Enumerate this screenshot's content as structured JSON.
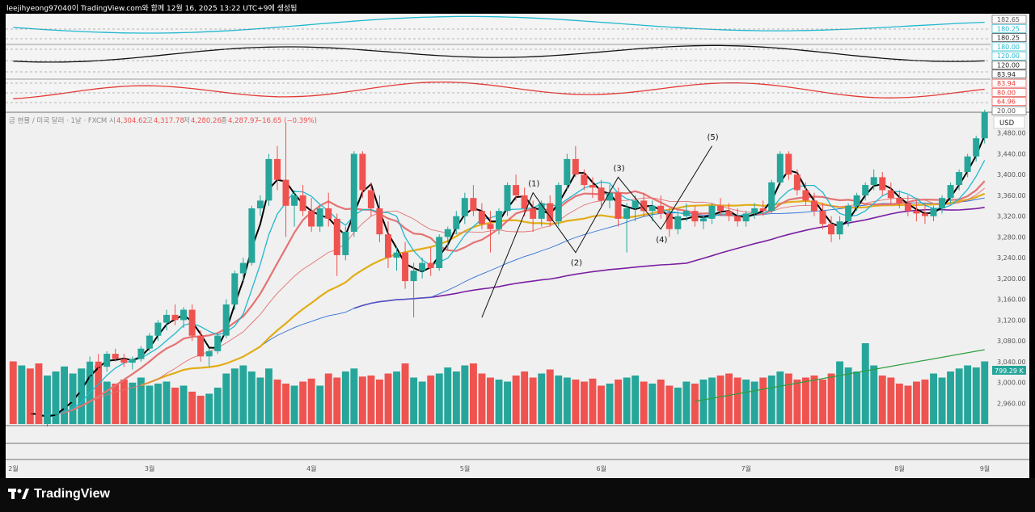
{
  "credit": "leejihyeong97040이 TradingView.com와 함께 12월 16, 2025 13:22 UTC+9에 생성됨",
  "brand": "TradingView",
  "legend": {
    "symbol": "금 현물 / 미국 달러 · 1날 · FXCM",
    "o_label": "시",
    "o": "4,304.62",
    "h_label": "고",
    "h": "4,317.78",
    "l_label": "저",
    "l": "4,280.26",
    "c_label": "종",
    "c": "4,287.97",
    "change": "−16.65 (−0.39%)"
  },
  "currency": "USD",
  "colors": {
    "up": "#26a69a",
    "down": "#ef5350",
    "ma_black": "#000000",
    "ma_cyan": "#1fb8cf",
    "ma_pink": "#e57373",
    "ma_gold": "#e2ad17",
    "ma_blue": "#2f6fd6",
    "ma_purple": "#7b1fa2",
    "vol_ma": "#2e9e3e",
    "wave": "#666666",
    "wave_line": "#111111"
  },
  "indicator_labels": [
    "182.65",
    "180.25",
    "180.25",
    "180.00",
    "120.00",
    "120.00",
    "83.94",
    "83.94",
    "80.00",
    "64.96",
    "20.00"
  ],
  "chart_data": {
    "type": "candlestick",
    "title": "금 현물 / 미국 달러 · 1날 · FXCM",
    "ylabel": "USD",
    "ylim": [
      2920,
      3520
    ],
    "y_ticks": [
      "2,960.00",
      "3,000.00",
      "3,040.00",
      "3,080.00",
      "3,120.00",
      "3,160.00",
      "3,200.00",
      "3,240.00",
      "3,280.00",
      "3,320.00",
      "3,360.00",
      "3,400.00",
      "3,440.00",
      "3,480.00"
    ],
    "x_labels": [
      "2월",
      "3월",
      "4월",
      "5월",
      "6월",
      "7월",
      "8월",
      "9월"
    ],
    "last_volume_label": "799.29 K",
    "wave_labels": [
      "(1)",
      "(2)",
      "(3)",
      "(4)",
      "(5)"
    ],
    "wave_points": [
      [
        55,
        3125
      ],
      [
        61,
        3365
      ],
      [
        66,
        3250
      ],
      [
        71,
        3395
      ],
      [
        76,
        3295
      ],
      [
        82,
        3455
      ]
    ],
    "ohlc": [
      [
        2945,
        2955,
        2930,
        2935
      ],
      [
        2935,
        2950,
        2925,
        2948
      ],
      [
        2948,
        2960,
        2935,
        2940
      ],
      [
        2940,
        2945,
        2920,
        2925
      ],
      [
        2925,
        2940,
        2915,
        2938
      ],
      [
        2938,
        2952,
        2930,
        2950
      ],
      [
        2950,
        2968,
        2945,
        2962
      ],
      [
        2962,
        2985,
        2958,
        2980
      ],
      [
        2980,
        3020,
        2975,
        3015
      ],
      [
        3015,
        3050,
        3005,
        3040
      ],
      [
        3040,
        3055,
        3025,
        3030
      ],
      [
        3030,
        3060,
        3020,
        3055
      ],
      [
        3055,
        3065,
        3040,
        3045
      ],
      [
        3045,
        3055,
        3030,
        3038
      ],
      [
        3038,
        3050,
        3025,
        3045
      ],
      [
        3045,
        3070,
        3040,
        3065
      ],
      [
        3065,
        3095,
        3060,
        3090
      ],
      [
        3090,
        3120,
        3080,
        3115
      ],
      [
        3115,
        3140,
        3100,
        3130
      ],
      [
        3130,
        3150,
        3110,
        3120
      ],
      [
        3120,
        3145,
        3105,
        3140
      ],
      [
        3140,
        3150,
        3080,
        3090
      ],
      [
        3090,
        3100,
        3040,
        3050
      ],
      [
        3050,
        3065,
        3030,
        3060
      ],
      [
        3060,
        3095,
        3055,
        3090
      ],
      [
        3090,
        3160,
        3085,
        3150
      ],
      [
        3150,
        3215,
        3140,
        3210
      ],
      [
        3210,
        3240,
        3195,
        3230
      ],
      [
        3230,
        3340,
        3225,
        3335
      ],
      [
        3335,
        3360,
        3320,
        3350
      ],
      [
        3350,
        3440,
        3340,
        3430
      ],
      [
        3430,
        3455,
        3370,
        3390
      ],
      [
        3390,
        3500,
        3280,
        3340
      ],
      [
        3340,
        3370,
        3300,
        3360
      ],
      [
        3360,
        3380,
        3320,
        3330
      ],
      [
        3330,
        3355,
        3290,
        3300
      ],
      [
        3300,
        3340,
        3290,
        3335
      ],
      [
        3335,
        3365,
        3300,
        3315
      ],
      [
        3315,
        3325,
        3205,
        3245
      ],
      [
        3245,
        3300,
        3235,
        3290
      ],
      [
        3290,
        3445,
        3280,
        3440
      ],
      [
        3440,
        3445,
        3355,
        3370
      ],
      [
        3370,
        3385,
        3320,
        3335
      ],
      [
        3335,
        3360,
        3270,
        3285
      ],
      [
        3285,
        3310,
        3220,
        3240
      ],
      [
        3240,
        3260,
        3215,
        3250
      ],
      [
        3250,
        3270,
        3180,
        3195
      ],
      [
        3195,
        3230,
        3125,
        3215
      ],
      [
        3215,
        3240,
        3200,
        3230
      ],
      [
        3230,
        3260,
        3205,
        3220
      ],
      [
        3220,
        3285,
        3215,
        3280
      ],
      [
        3280,
        3300,
        3255,
        3295
      ],
      [
        3295,
        3330,
        3285,
        3320
      ],
      [
        3320,
        3365,
        3305,
        3355
      ],
      [
        3355,
        3380,
        3320,
        3330
      ],
      [
        3330,
        3345,
        3295,
        3305
      ],
      [
        3305,
        3330,
        3250,
        3295
      ],
      [
        3295,
        3335,
        3285,
        3330
      ],
      [
        3330,
        3385,
        3320,
        3380
      ],
      [
        3380,
        3400,
        3350,
        3360
      ],
      [
        3360,
        3375,
        3320,
        3335
      ],
      [
        3335,
        3350,
        3290,
        3315
      ],
      [
        3315,
        3350,
        3300,
        3345
      ],
      [
        3345,
        3360,
        3300,
        3310
      ],
      [
        3310,
        3385,
        3300,
        3380
      ],
      [
        3380,
        3440,
        3370,
        3430
      ],
      [
        3430,
        3455,
        3395,
        3400
      ],
      [
        3400,
        3410,
        3370,
        3380
      ],
      [
        3380,
        3395,
        3355,
        3375
      ],
      [
        3375,
        3390,
        3340,
        3350
      ],
      [
        3350,
        3380,
        3335,
        3365
      ],
      [
        3365,
        3375,
        3300,
        3315
      ],
      [
        3315,
        3345,
        3250,
        3335
      ],
      [
        3335,
        3360,
        3310,
        3350
      ],
      [
        3350,
        3365,
        3320,
        3330
      ],
      [
        3330,
        3350,
        3310,
        3340
      ],
      [
        3340,
        3360,
        3315,
        3325
      ],
      [
        3325,
        3335,
        3280,
        3295
      ],
      [
        3295,
        3330,
        3285,
        3320
      ],
      [
        3320,
        3345,
        3310,
        3330
      ],
      [
        3330,
        3340,
        3300,
        3310
      ],
      [
        3310,
        3320,
        3295,
        3315
      ],
      [
        3315,
        3345,
        3305,
        3340
      ],
      [
        3340,
        3355,
        3320,
        3330
      ],
      [
        3330,
        3345,
        3310,
        3320
      ],
      [
        3320,
        3335,
        3300,
        3310
      ],
      [
        3310,
        3330,
        3300,
        3325
      ],
      [
        3325,
        3345,
        3315,
        3335
      ],
      [
        3335,
        3350,
        3320,
        3330
      ],
      [
        3330,
        3390,
        3325,
        3385
      ],
      [
        3385,
        3445,
        3380,
        3440
      ],
      [
        3440,
        3445,
        3390,
        3400
      ],
      [
        3400,
        3410,
        3360,
        3370
      ],
      [
        3370,
        3385,
        3340,
        3350
      ],
      [
        3350,
        3365,
        3320,
        3330
      ],
      [
        3330,
        3345,
        3295,
        3305
      ],
      [
        3305,
        3320,
        3270,
        3285
      ],
      [
        3285,
        3320,
        3275,
        3310
      ],
      [
        3310,
        3345,
        3300,
        3340
      ],
      [
        3340,
        3365,
        3330,
        3360
      ],
      [
        3360,
        3385,
        3350,
        3380
      ],
      [
        3380,
        3410,
        3370,
        3395
      ],
      [
        3395,
        3405,
        3360,
        3370
      ],
      [
        3370,
        3385,
        3345,
        3355
      ],
      [
        3355,
        3370,
        3335,
        3345
      ],
      [
        3345,
        3360,
        3320,
        3330
      ],
      [
        3330,
        3350,
        3310,
        3325
      ],
      [
        3325,
        3345,
        3305,
        3320
      ],
      [
        3320,
        3340,
        3310,
        3335
      ],
      [
        3335,
        3360,
        3325,
        3355
      ],
      [
        3355,
        3385,
        3345,
        3380
      ],
      [
        3380,
        3410,
        3370,
        3405
      ],
      [
        3405,
        3440,
        3395,
        3435
      ],
      [
        3435,
        3475,
        3425,
        3470
      ],
      [
        3470,
        3525,
        3460,
        3520
      ]
    ],
    "volume": [
      62,
      58,
      55,
      60,
      48,
      52,
      57,
      50,
      55,
      54,
      58,
      42,
      40,
      44,
      41,
      46,
      38,
      40,
      42,
      36,
      38,
      32,
      28,
      30,
      36,
      50,
      55,
      58,
      52,
      46,
      55,
      44,
      40,
      38,
      42,
      45,
      38,
      50,
      46,
      52,
      55,
      47,
      48,
      44,
      50,
      52,
      60,
      46,
      42,
      48,
      50,
      56,
      52,
      58,
      60,
      50,
      46,
      44,
      42,
      48,
      52,
      46,
      50,
      54,
      48,
      46,
      44,
      42,
      45,
      38,
      40,
      44,
      46,
      48,
      42,
      40,
      44,
      38,
      36,
      42,
      40,
      44,
      46,
      48,
      50,
      46,
      44,
      42,
      46,
      48,
      52,
      50,
      44,
      46,
      48,
      44,
      50,
      62,
      56,
      52,
      80,
      58,
      48,
      46,
      40,
      38,
      42,
      44,
      50,
      46,
      52,
      55,
      58,
      56,
      62,
      60,
      66,
      70,
      58,
      55,
      50,
      48
    ]
  }
}
